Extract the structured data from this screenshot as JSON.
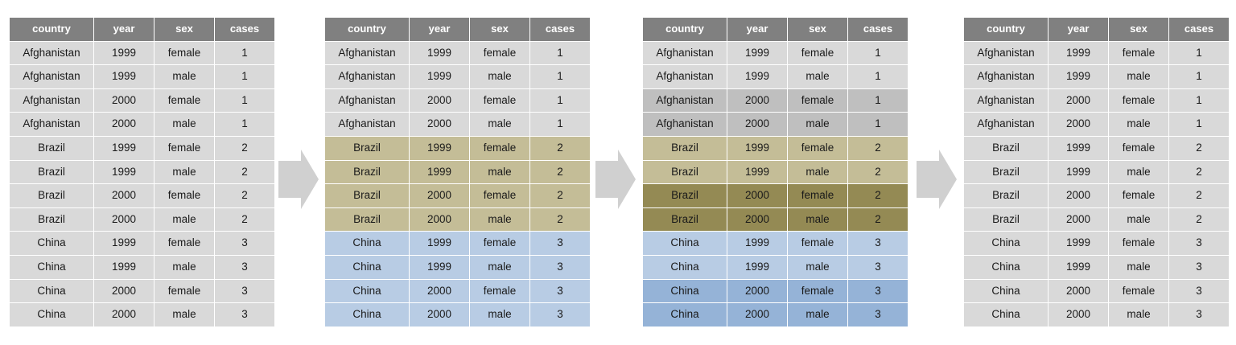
{
  "columns": [
    "country",
    "year",
    "sex",
    "cases"
  ],
  "rows": [
    [
      "Afghanistan",
      "1999",
      "female",
      "1"
    ],
    [
      "Afghanistan",
      "1999",
      "male",
      "1"
    ],
    [
      "Afghanistan",
      "2000",
      "female",
      "1"
    ],
    [
      "Afghanistan",
      "2000",
      "male",
      "1"
    ],
    [
      "Brazil",
      "1999",
      "female",
      "2"
    ],
    [
      "Brazil",
      "1999",
      "male",
      "2"
    ],
    [
      "Brazil",
      "2000",
      "female",
      "2"
    ],
    [
      "Brazil",
      "2000",
      "male",
      "2"
    ],
    [
      "China",
      "1999",
      "female",
      "3"
    ],
    [
      "China",
      "1999",
      "male",
      "3"
    ],
    [
      "China",
      "2000",
      "female",
      "3"
    ],
    [
      "China",
      "2000",
      "male",
      "3"
    ]
  ],
  "colors": {
    "header": "#808080",
    "grey": "#d9d9d9",
    "grey_dark": "#bfbfbf",
    "olive": "#c4bd97",
    "olive_dark": "#948a54",
    "blue": "#b8cce4",
    "blue_dark": "#95b3d7",
    "arrow": "#d0d0d0"
  },
  "tables": [
    {
      "name": "table-original",
      "row_colors": [
        "grey",
        "grey",
        "grey",
        "grey",
        "grey",
        "grey",
        "grey",
        "grey",
        "grey",
        "grey",
        "grey",
        "grey"
      ]
    },
    {
      "name": "table-grouped-country",
      "row_colors": [
        "grey",
        "grey",
        "grey",
        "grey",
        "olive",
        "olive",
        "olive",
        "olive",
        "blue",
        "blue",
        "blue",
        "blue"
      ]
    },
    {
      "name": "table-grouped-country-year",
      "row_colors": [
        "grey",
        "grey",
        "grey_dark",
        "grey_dark",
        "olive",
        "olive",
        "olive_dark",
        "olive_dark",
        "blue",
        "blue",
        "blue_dark",
        "blue_dark"
      ]
    },
    {
      "name": "table-result",
      "row_colors": [
        "grey",
        "grey",
        "grey",
        "grey",
        "grey",
        "grey",
        "grey",
        "grey",
        "grey",
        "grey",
        "grey",
        "grey"
      ]
    }
  ]
}
